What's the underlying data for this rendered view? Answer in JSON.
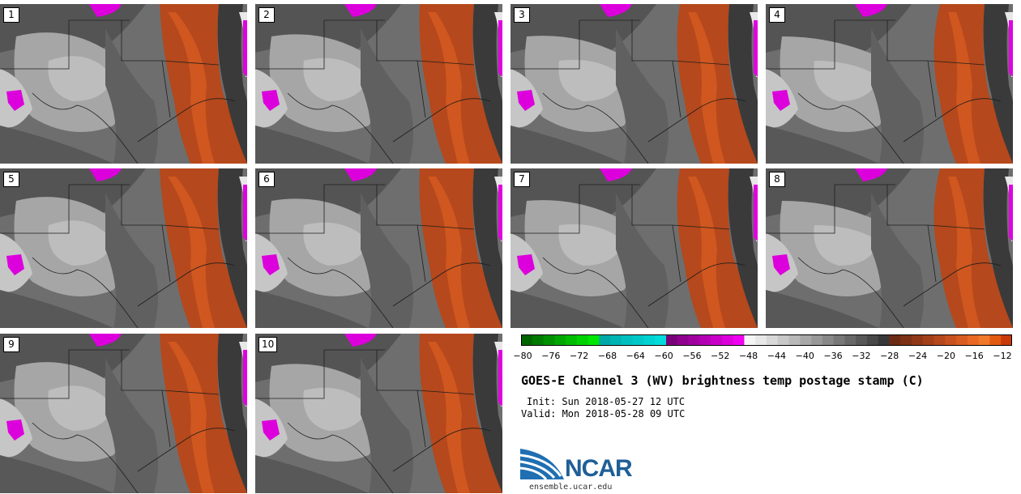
{
  "panels": [
    {
      "label": "1"
    },
    {
      "label": "2"
    },
    {
      "label": "3"
    },
    {
      "label": "4"
    },
    {
      "label": "5"
    },
    {
      "label": "6"
    },
    {
      "label": "7"
    },
    {
      "label": "8"
    },
    {
      "label": "9"
    },
    {
      "label": "10"
    }
  ],
  "colorbar": {
    "ticks": [
      "−80",
      "−76",
      "−72",
      "−68",
      "−64",
      "−60",
      "−56",
      "−52",
      "−48",
      "−44",
      "−40",
      "−36",
      "−32",
      "−28",
      "−24",
      "−20",
      "−16",
      "−12"
    ],
    "colors": [
      "#006400",
      "#007a00",
      "#009000",
      "#00a600",
      "#00bc00",
      "#00d200",
      "#00e600",
      "#00a8a8",
      "#00b4b4",
      "#00bfbf",
      "#00c8c8",
      "#00d2d2",
      "#00dcdc",
      "#7a007a",
      "#8f008f",
      "#a000a0",
      "#b400b4",
      "#c800c8",
      "#dc00dc",
      "#f000f0",
      "#f5f5f5",
      "#e8e8e8",
      "#d8d8d8",
      "#c8c8c8",
      "#b8b8b8",
      "#a8a8a8",
      "#989898",
      "#888888",
      "#787878",
      "#686868",
      "#585858",
      "#484848",
      "#383838",
      "#6b2a14",
      "#7d3015",
      "#8f3817",
      "#a2401a",
      "#b5481c",
      "#c8521f",
      "#d85c22",
      "#e86824",
      "#f07a2a",
      "#e15a10",
      "#c83a0a"
    ]
  },
  "title": "GOES-E Channel 3 (WV) brightness temp postage stamp (C)",
  "init": "Init: Sun 2018-05-27 12 UTC",
  "valid": "Valid: Mon 2018-05-28 09 UTC",
  "logo_text": "NCAR",
  "site": "ensemble.ucar.edu"
}
